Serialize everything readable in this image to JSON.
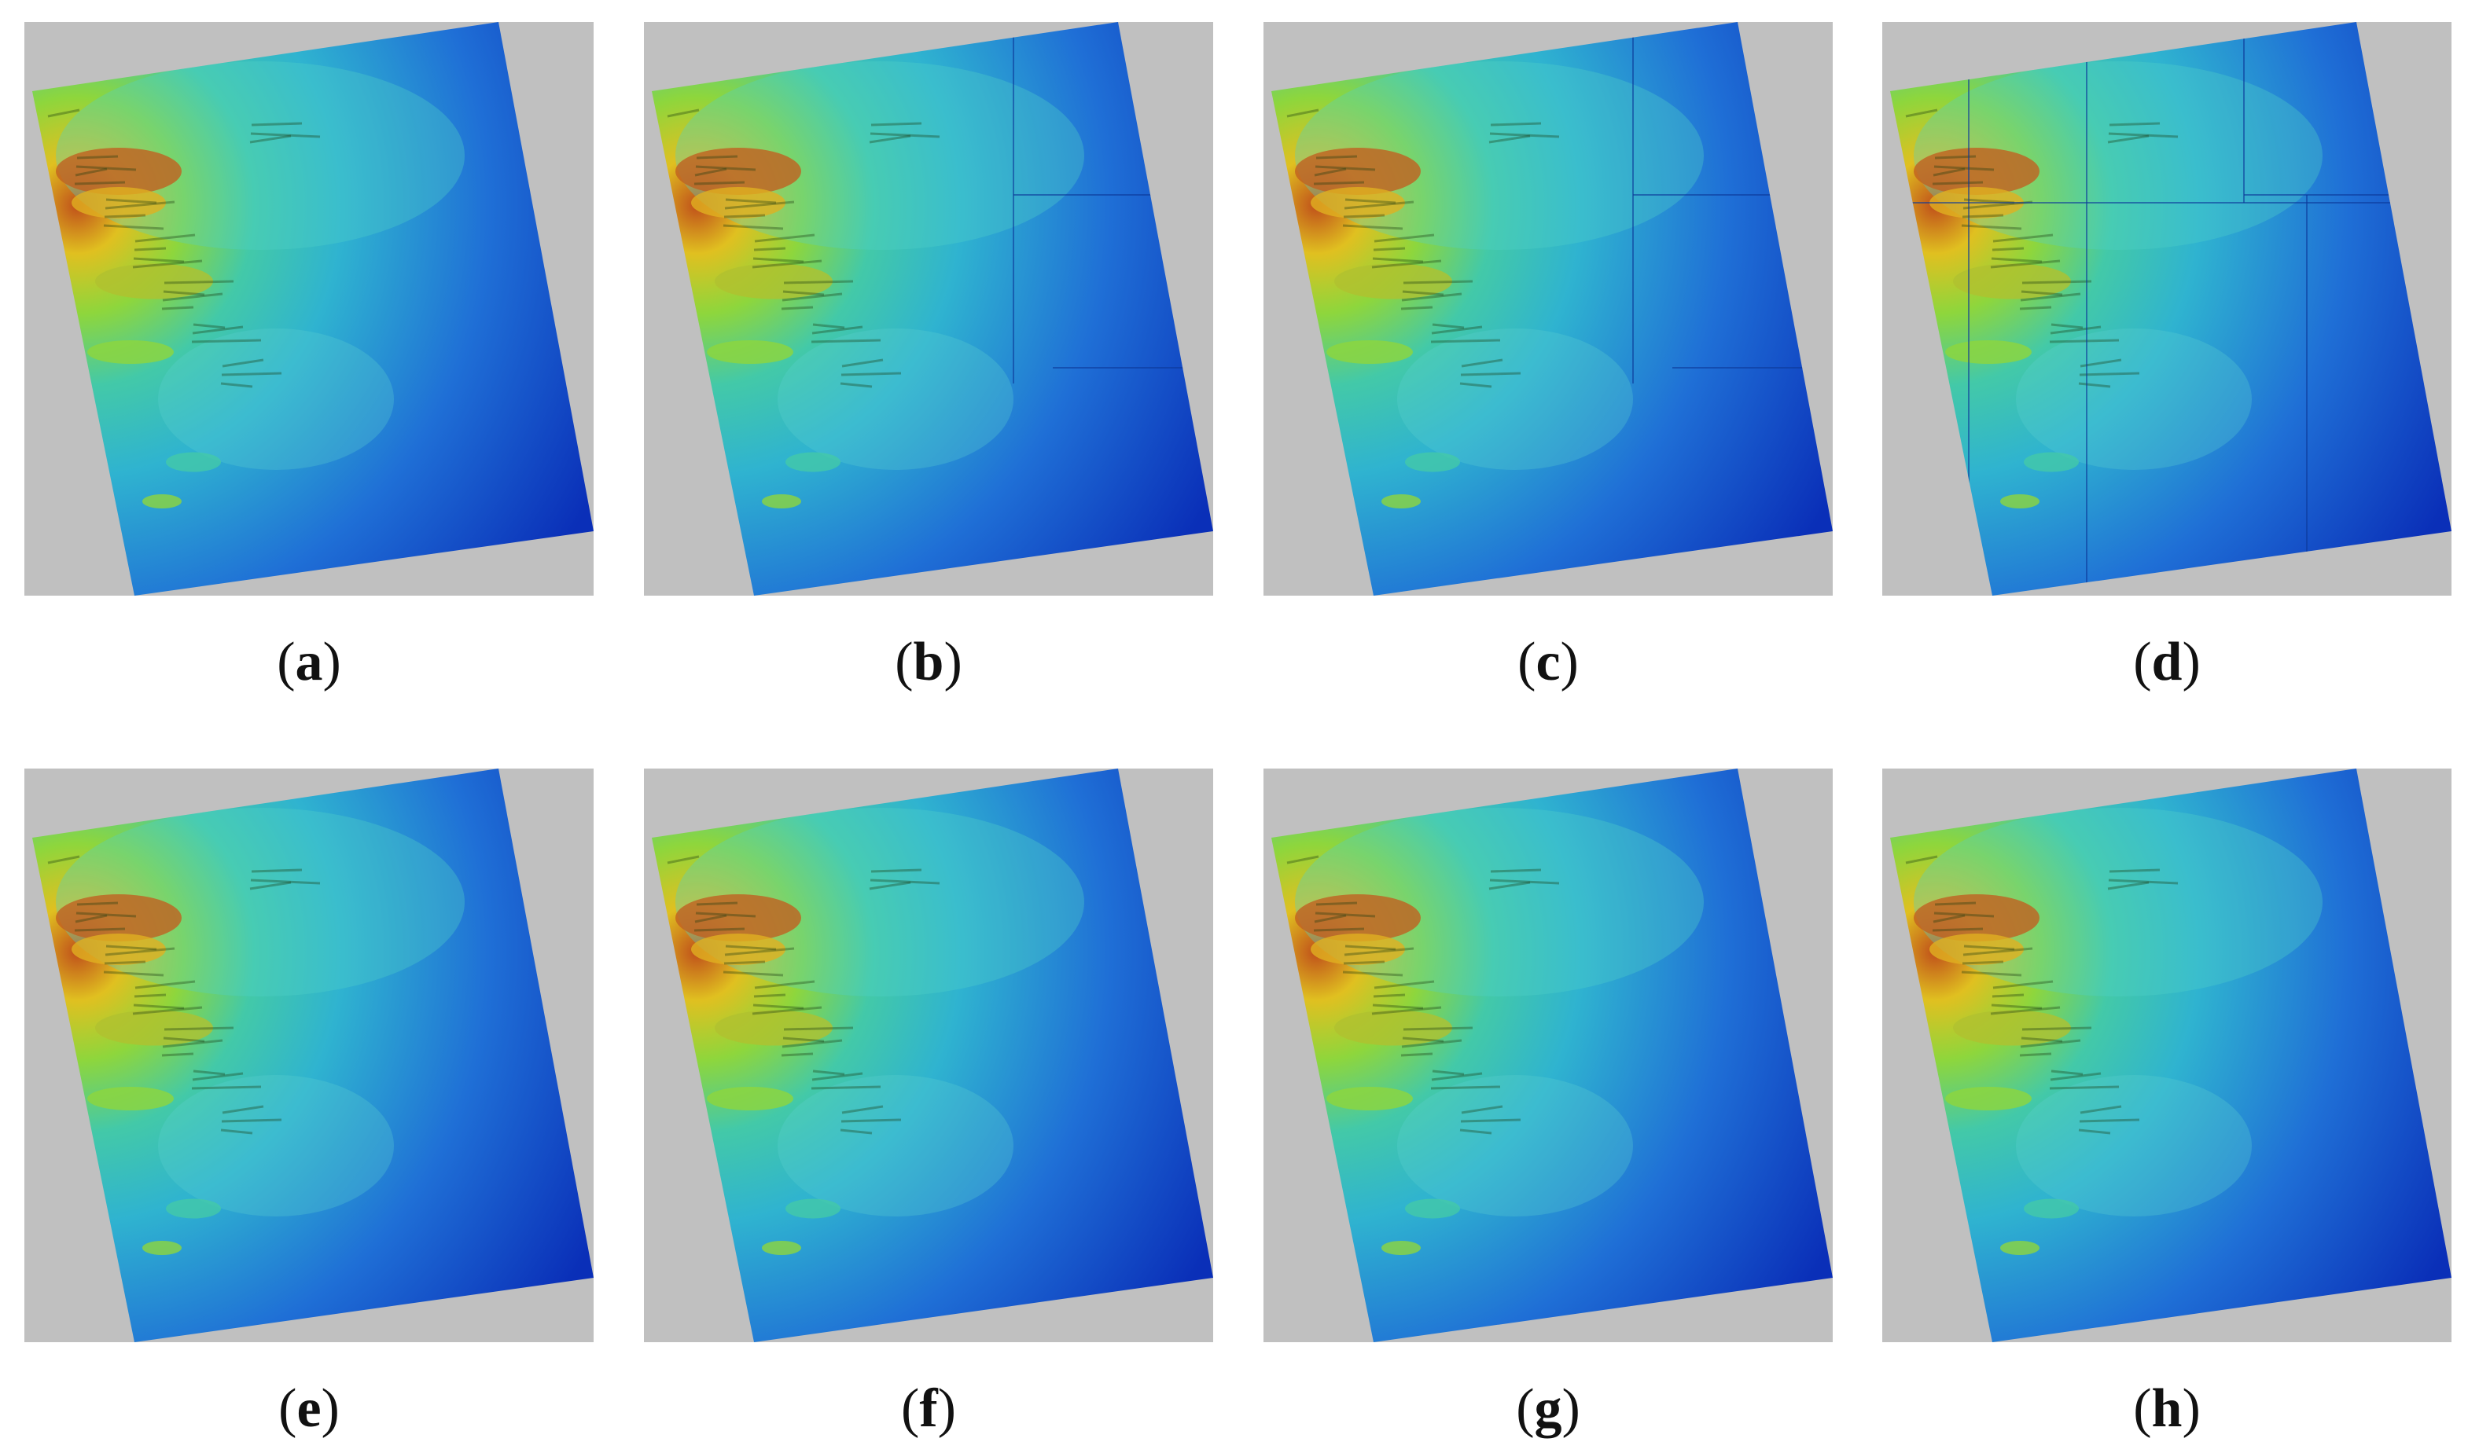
{
  "figure": {
    "background_color": "#c0c0c0",
    "colormap": [
      "#0a2fb8",
      "#1f6fd6",
      "#2fb3d0",
      "#43c9a8",
      "#8ed63c",
      "#e0c020",
      "#c0501a"
    ],
    "panels": [
      {
        "letter": "a",
        "tiles": 1,
        "seams": false
      },
      {
        "letter": "b",
        "tiles": 4,
        "seams": true
      },
      {
        "letter": "c",
        "tiles": 4,
        "seams": true
      },
      {
        "letter": "d",
        "tiles": 6,
        "seams": true
      },
      {
        "letter": "e",
        "tiles": 1,
        "seams": false
      },
      {
        "letter": "f",
        "tiles": 1,
        "seams": false
      },
      {
        "letter": "g",
        "tiles": 1,
        "seams": false
      },
      {
        "letter": "h",
        "tiles": 1,
        "seams": false
      }
    ]
  }
}
